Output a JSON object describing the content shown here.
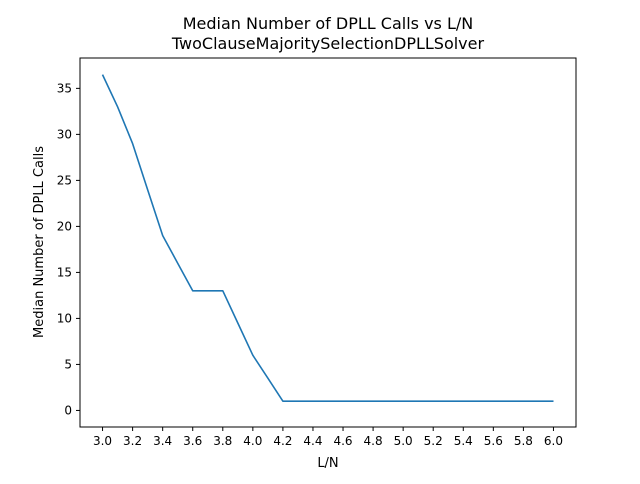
{
  "chart_data": {
    "type": "line",
    "title": "Median Number of DPLL Calls vs L/N",
    "subtitle": "TwoClauseMajoritySelectionDPLLSolver",
    "xlabel": "L/N",
    "ylabel": "Median Number of DPLL Calls",
    "xlim": [
      2.85,
      6.15
    ],
    "ylim": [
      -1.8,
      38.3
    ],
    "x_ticks": [
      "3.0",
      "3.2",
      "3.4",
      "3.6",
      "3.8",
      "4.0",
      "4.2",
      "4.4",
      "4.6",
      "4.8",
      "5.0",
      "5.2",
      "5.4",
      "5.6",
      "5.8",
      "6.0"
    ],
    "y_ticks": [
      "0",
      "5",
      "10",
      "15",
      "20",
      "25",
      "30",
      "35"
    ],
    "grid": false,
    "series": [
      {
        "color": "#1f77b4",
        "x": [
          3.0,
          3.1,
          3.2,
          3.3,
          3.4,
          3.5,
          3.6,
          3.7,
          3.8,
          3.9,
          4.0,
          4.1,
          4.2,
          4.3,
          4.4,
          4.5,
          4.6,
          4.7,
          4.8,
          4.9,
          5.0,
          5.1,
          5.2,
          5.3,
          5.4,
          5.5,
          5.6,
          5.7,
          5.8,
          5.9,
          6.0
        ],
        "values": [
          36.5,
          33.0,
          29.0,
          24.0,
          19.0,
          16.0,
          13.0,
          13.0,
          13.0,
          9.5,
          6.0,
          3.5,
          1.0,
          1.0,
          1.0,
          1.0,
          1.0,
          1.0,
          1.0,
          1.0,
          1.0,
          1.0,
          1.0,
          1.0,
          1.0,
          1.0,
          1.0,
          1.0,
          1.0,
          1.0,
          1.0
        ]
      }
    ]
  }
}
